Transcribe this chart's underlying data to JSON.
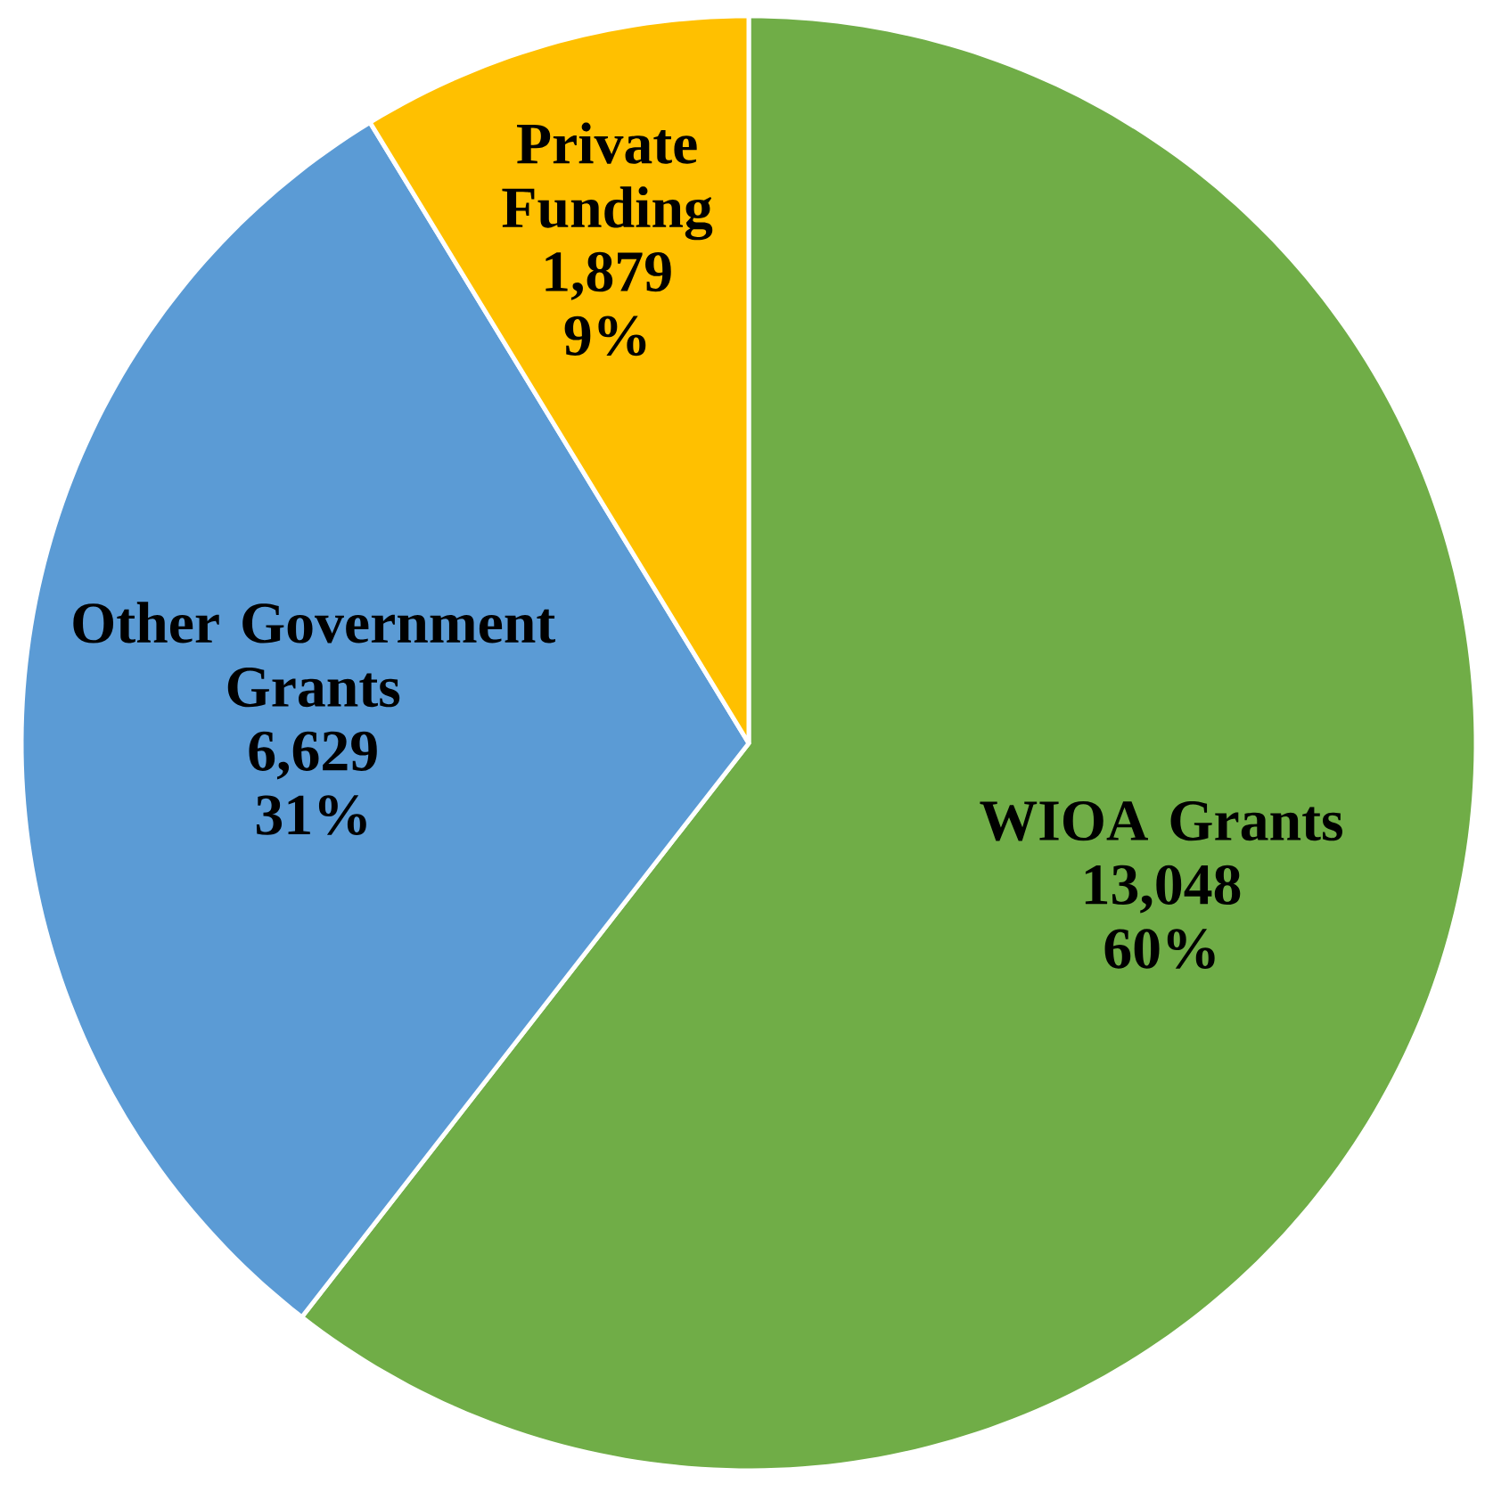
{
  "chart_data": {
    "type": "pie",
    "categories": [
      "WIOA Grants",
      "Other Government Grants",
      "Private Funding"
    ],
    "values": [
      13048,
      6629,
      1879
    ],
    "value_labels": [
      "13,048",
      "6,629",
      "1,879"
    ],
    "colors": [
      "#70ad47",
      "#5b9bd5",
      "#ffc000"
    ],
    "annotations": [
      "60%",
      "31%",
      "9%"
    ]
  }
}
